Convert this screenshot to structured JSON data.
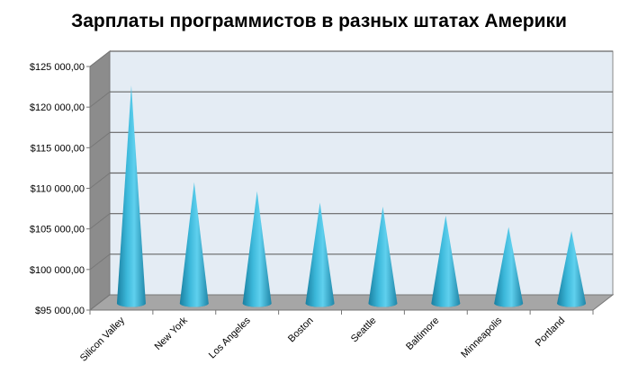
{
  "chart_data": {
    "type": "bar",
    "subtype": "3d-cone",
    "title": "Зарплаты программистов в разных штатах Америки",
    "categories": [
      "Silicon Valley",
      "New York",
      "Los Angeles",
      "Boston",
      "Seattle",
      "Baltimore",
      "Minneapolis",
      "Portland"
    ],
    "values": [
      121700,
      109800,
      108700,
      107300,
      106800,
      105700,
      104300,
      103800
    ],
    "xlabel": "",
    "ylabel": "",
    "ylim": [
      95000,
      125000
    ],
    "ytick_labels": [
      "$95 000,00",
      "$100 000,00",
      "$105 000,00",
      "$110 000,00",
      "$115 000,00",
      "$120 000,00",
      "$125 000,00"
    ],
    "grid": true,
    "legend": "none",
    "colors": {
      "cone": "#2ea8cc",
      "wall": "#e4ecf4",
      "floor": "#a6a6a6",
      "side": "#8c8c8c"
    }
  }
}
